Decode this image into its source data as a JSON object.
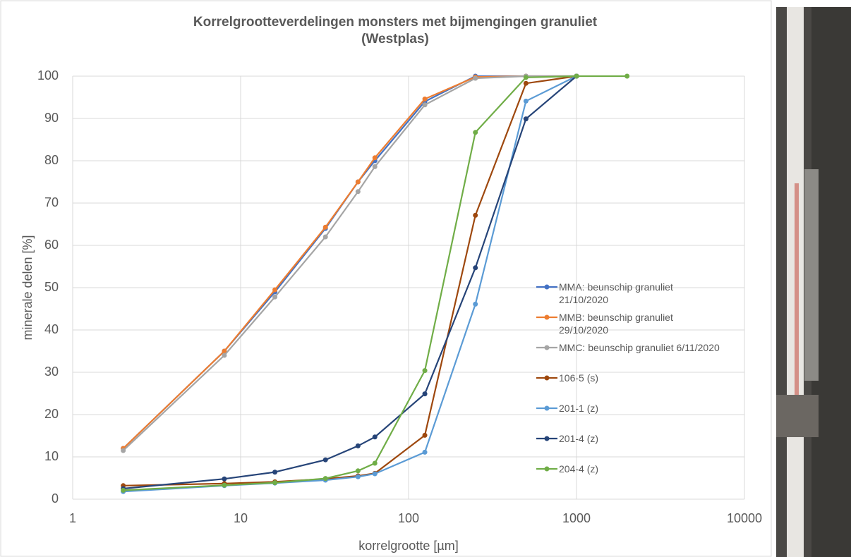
{
  "chart_data": {
    "type": "line",
    "title": [
      "Korrelgrootteverdelingen monsters met bijmengingen granuliet",
      "(Westplas)"
    ],
    "x_label": "korrelgrootte [µm]",
    "y_label": "minerale delen [%]",
    "x": [
      2,
      8,
      16,
      32,
      50,
      63,
      125,
      250,
      500,
      1000,
      2000
    ],
    "x_log": true,
    "xlim": [
      1,
      10000
    ],
    "xticks": [
      1,
      10,
      100,
      1000,
      10000
    ],
    "ylim": [
      0,
      100
    ],
    "yticks": [
      0,
      10,
      20,
      30,
      40,
      50,
      60,
      70,
      80,
      90,
      100
    ],
    "grid": true,
    "series": [
      {
        "name": "MMA: beunschip granuliet 21/10/2020",
        "color": "#4472c4",
        "values": [
          12,
          35,
          49,
          64,
          75,
          80,
          94,
          100,
          100,
          100,
          null
        ]
      },
      {
        "name": "MMB: beunschip granuliet 29/10/2020",
        "color": "#ed7d31",
        "values": [
          12,
          35,
          49.5,
          64.3,
          75,
          80.7,
          94.6,
          99.8,
          100,
          100,
          null
        ]
      },
      {
        "name": "MMC: beunschip granuliet 6/11/2020",
        "color": "#a5a5a5",
        "values": [
          11.5,
          34,
          47.8,
          62,
          72.7,
          78.6,
          93.2,
          99.5,
          100,
          100,
          null
        ]
      },
      {
        "name": "106-5 (s)",
        "color": "#9e480e",
        "values": [
          3.2,
          3.7,
          4.1,
          4.8,
          5.5,
          6.1,
          15.1,
          67.1,
          98.3,
          100,
          null
        ]
      },
      {
        "name": "201-1 (z)",
        "color": "#5b9bd5",
        "values": [
          1.8,
          3.2,
          3.8,
          4.5,
          5.3,
          6,
          11.1,
          46.1,
          94.1,
          100,
          null
        ]
      },
      {
        "name": "201-4 (z)",
        "color": "#264478",
        "values": [
          2.5,
          4.8,
          6.4,
          9.3,
          12.6,
          14.7,
          24.9,
          54.7,
          89.9,
          100,
          null
        ]
      },
      {
        "name": "204-4 (z)",
        "color": "#70ad47",
        "values": [
          2.1,
          3.3,
          3.9,
          4.9,
          6.7,
          8.5,
          30.4,
          86.7,
          99.7,
          100,
          100
        ]
      }
    ]
  }
}
